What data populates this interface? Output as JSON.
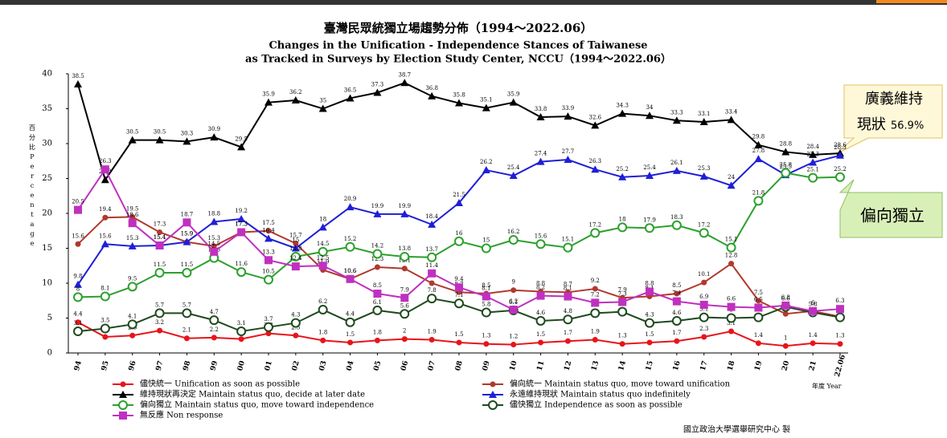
{
  "chart_data": {
    "type": "line",
    "title": "臺灣民眾統獨立場趨勢分佈（1994～2022.06）",
    "subtitle": [
      "Changes in the Unification - Independence Stances of Taiwanese",
      "as Tracked in Surveys by Election Study Center, NCCU（1994～2022.06）"
    ],
    "y_label": [
      "百",
      "分",
      "比",
      "P",
      "e",
      "r",
      "c",
      "e",
      "n",
      "t",
      "a",
      "g",
      "e"
    ],
    "x_label": "年度 Year",
    "source": "國立政治大學選舉研究中心 製",
    "annotations": [
      [
        "廣義維持",
        "現狀",
        "56.9%"
      ],
      [
        "偏向獨立"
      ]
    ],
    "categories": [
      "94",
      "95",
      "96",
      "97",
      "98",
      "99",
      "00",
      "01",
      "02",
      "03",
      "04",
      "05",
      "06",
      "07",
      "08",
      "09",
      "10",
      "11",
      "12",
      "13",
      "14",
      "15",
      "16",
      "17",
      "18",
      "19",
      "20",
      "21",
      "22.06"
    ],
    "ylim": [
      0,
      40
    ],
    "yticks": [
      0,
      5,
      10,
      15,
      20,
      25,
      30,
      35,
      40
    ],
    "series": [
      {
        "name": "儘快統一 Unification as soon as possible",
        "color": "#e8141b",
        "marker": "dot",
        "values": [
          4.4,
          2.3,
          2.5,
          3.2,
          2.1,
          2.2,
          2.0,
          2.8,
          2.5,
          1.8,
          1.5,
          1.8,
          2.0,
          1.9,
          1.5,
          1.3,
          1.2,
          1.5,
          1.7,
          1.9,
          1.3,
          1.5,
          1.7,
          2.3,
          3.1,
          1.4,
          1.0,
          1.4,
          1.3
        ]
      },
      {
        "name": "偏向統一 Maintain status quo, move toward unification",
        "color": "#b0392e",
        "marker": "dot",
        "values": [
          15.6,
          19.4,
          19.5,
          17.3,
          15.9,
          15.3,
          17.3,
          17.5,
          15.7,
          11.9,
          10.6,
          12.3,
          12.1,
          10.0,
          8.7,
          8.5,
          9.0,
          8.8,
          8.7,
          9.2,
          7.9,
          8.1,
          8.5,
          10.1,
          12.8,
          7.5,
          5.6,
          6.0,
          5.2
        ]
      },
      {
        "name": "維持現狀再決定 Maintain status quo, decide at later date",
        "color": "#000000",
        "marker": "tri",
        "values": [
          38.5,
          24.8,
          30.5,
          30.5,
          30.3,
          30.9,
          29.5,
          35.9,
          36.2,
          35.0,
          36.5,
          37.3,
          38.7,
          36.8,
          35.8,
          35.1,
          35.9,
          33.8,
          33.9,
          32.6,
          34.3,
          34.0,
          33.3,
          33.1,
          33.4,
          29.8,
          28.8,
          28.4,
          28.6
        ]
      },
      {
        "name": "永遠維持現狀 Maintain status quo indefinitely",
        "color": "#1f1fd6",
        "marker": "tri",
        "values": [
          9.8,
          15.6,
          15.3,
          15.4,
          15.9,
          18.8,
          19.2,
          16.4,
          15.0,
          18.0,
          20.9,
          19.9,
          19.9,
          18.4,
          21.5,
          26.2,
          25.4,
          27.4,
          27.7,
          26.3,
          25.2,
          25.4,
          26.1,
          25.3,
          24.0,
          27.8,
          25.5,
          27.3,
          28.3
        ]
      },
      {
        "name": "偏向獨立 Maintain status quo, move toward independence",
        "color": "#2ca02c",
        "marker": "ring",
        "values": [
          8.0,
          8.1,
          9.5,
          11.5,
          11.5,
          13.6,
          11.6,
          10.5,
          13.8,
          14.5,
          15.2,
          14.2,
          13.8,
          13.7,
          16.0,
          15.0,
          16.2,
          15.6,
          15.1,
          17.2,
          18.0,
          17.9,
          18.3,
          17.2,
          15.1,
          21.8,
          25.8,
          25.1,
          25.2
        ]
      },
      {
        "name": "儘快獨立 Independence as soon as possible",
        "color": "#1e4a1e",
        "marker": "ring",
        "values": [
          3.1,
          3.5,
          4.1,
          5.7,
          5.7,
          4.7,
          3.1,
          3.7,
          4.3,
          6.2,
          4.4,
          6.1,
          5.6,
          7.8,
          7.1,
          5.8,
          6.1,
          4.6,
          4.8,
          5.7,
          5.9,
          4.3,
          4.6,
          5.1,
          5.0,
          5.1,
          6.6,
          5.8,
          5.1
        ]
      },
      {
        "name": "無反應 Non response",
        "color": "#c030c0",
        "marker": "square",
        "values": [
          20.5,
          26.3,
          18.6,
          15.4,
          18.7,
          14.5,
          17.3,
          13.3,
          12.4,
          12.5,
          10.6,
          8.5,
          7.9,
          11.4,
          9.4,
          8.1,
          6.2,
          8.2,
          8.1,
          7.2,
          7.3,
          8.8,
          7.4,
          6.9,
          6.6,
          6.5,
          6.8,
          6.0,
          6.3
        ]
      }
    ]
  }
}
